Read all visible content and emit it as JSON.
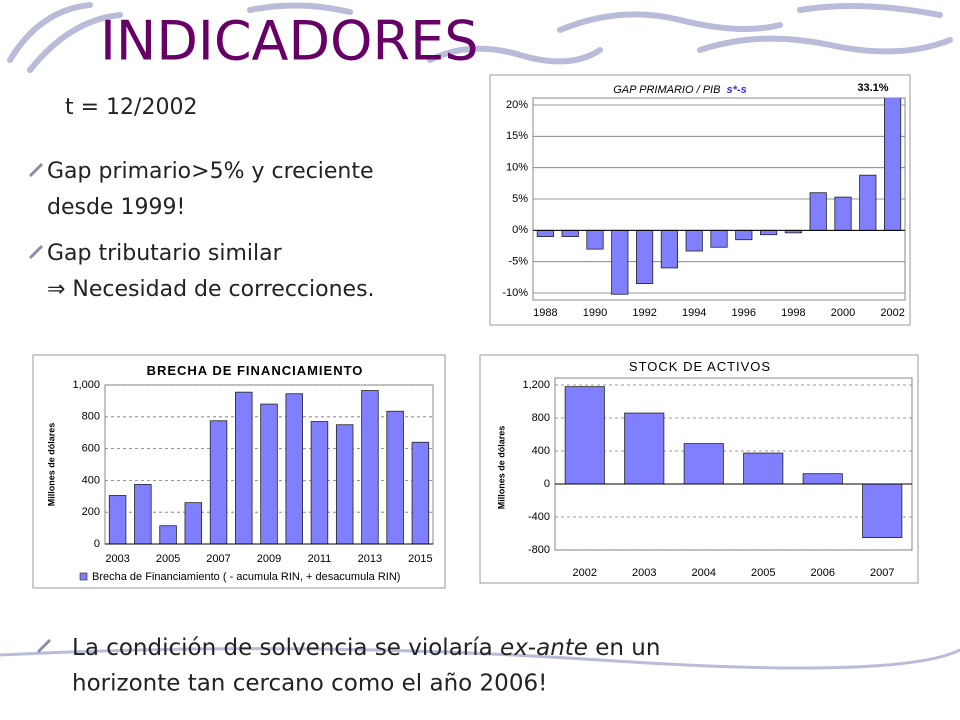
{
  "title": "INDICADORES",
  "date_line": "t = 12/2002",
  "bullets": [
    [
      "Gap primario>5% y creciente",
      "desde 1999!"
    ],
    [
      "Gap tributario similar",
      "⇒ Necesidad de correcciones."
    ]
  ],
  "footer_bullet": {
    "line1": [
      "La condición de solvencia se violaría ",
      "ex-ante",
      " en un"
    ],
    "line2": "horizonte tan cercano como el año 2006!"
  },
  "chart_data": [
    {
      "type": "bar",
      "title": "GAP PRIMARIO / PIB",
      "subtitle": "s*-s",
      "categories": [
        "1988",
        null,
        "1990",
        null,
        "1992",
        null,
        "1994",
        null,
        "1996",
        null,
        "1998",
        null,
        "2000",
        null,
        "2002"
      ],
      "values": [
        -1.0,
        -1.0,
        -3.0,
        -10.2,
        -8.5,
        -6.0,
        -3.3,
        -2.7,
        -1.5,
        -0.7,
        -0.4,
        6.0,
        5.3,
        8.8,
        33.1
      ],
      "value_labels": [
        null,
        null,
        null,
        null,
        null,
        null,
        null,
        null,
        null,
        null,
        null,
        null,
        null,
        null,
        "33.1%"
      ],
      "color": "#8080ff",
      "ylim": [
        -10,
        20
      ],
      "yticks": [
        {
          "value": -10,
          "label": "-10%"
        },
        {
          "value": -5,
          "label": "-5%"
        },
        {
          "value": 0,
          "label": "0%"
        },
        {
          "value": 5,
          "label": "5%"
        },
        {
          "value": 10,
          "label": "10%"
        },
        {
          "value": 15,
          "label": "15%"
        },
        {
          "value": 20,
          "label": "20%"
        }
      ],
      "grid": true
    },
    {
      "type": "bar",
      "title": "BRECHA DE FINANCIAMIENTO",
      "y_label": "Millones de dólares",
      "categories": [
        "2003",
        null,
        "2005",
        null,
        "2007",
        null,
        "2009",
        null,
        "2011",
        null,
        "2013",
        null,
        "2015"
      ],
      "series": [
        {
          "name": "Brecha de Financiamiento ( - acumula RIN, + desacumula RIN)",
          "color": "#8080ff",
          "values": [
            305,
            375,
            115,
            260,
            775,
            955,
            880,
            945,
            770,
            750,
            965,
            835,
            640
          ]
        }
      ],
      "ylim": [
        0,
        1000
      ],
      "yticks": [
        0,
        200,
        400,
        600,
        800,
        {
          "value": 1000,
          "label": "1,000"
        }
      ],
      "grid": true,
      "legend": "bottom"
    },
    {
      "type": "bar",
      "title": "STOCK DE ACTIVOS",
      "y_label": "Millones de dólares",
      "categories": [
        "2002",
        "2003",
        "2004",
        "2005",
        "2006",
        "2007"
      ],
      "values": [
        1180,
        860,
        490,
        375,
        125,
        -650
      ],
      "color": "#8080ff",
      "ylim": [
        -800,
        1200
      ],
      "yticks": [
        -800,
        -400,
        0,
        400,
        800,
        {
          "value": 1200,
          "label": "1,200"
        }
      ],
      "grid": true
    }
  ]
}
